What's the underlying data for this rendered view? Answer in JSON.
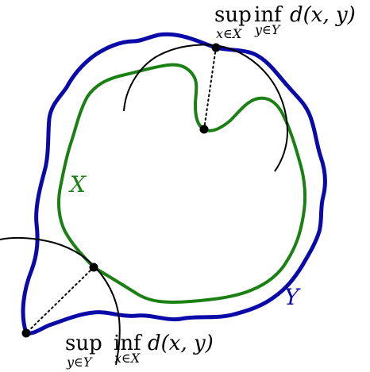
{
  "labels": {
    "set_x": "X",
    "set_y": "Y"
  },
  "formula_top": {
    "sup": "sup",
    "sup_sub": "x∈X",
    "inf": "inf",
    "inf_sub": "y∈Y",
    "expr": "d(x, y)"
  },
  "formula_bottom": {
    "sup": "sup",
    "sup_sub": "y∈Y",
    "inf": "inf",
    "inf_sub": "x∈X",
    "expr": "d(x, y)"
  },
  "colors": {
    "set_x": "#1a8014",
    "set_y": "#0a0aa8",
    "circle": "#000000",
    "point": "#000000"
  }
}
